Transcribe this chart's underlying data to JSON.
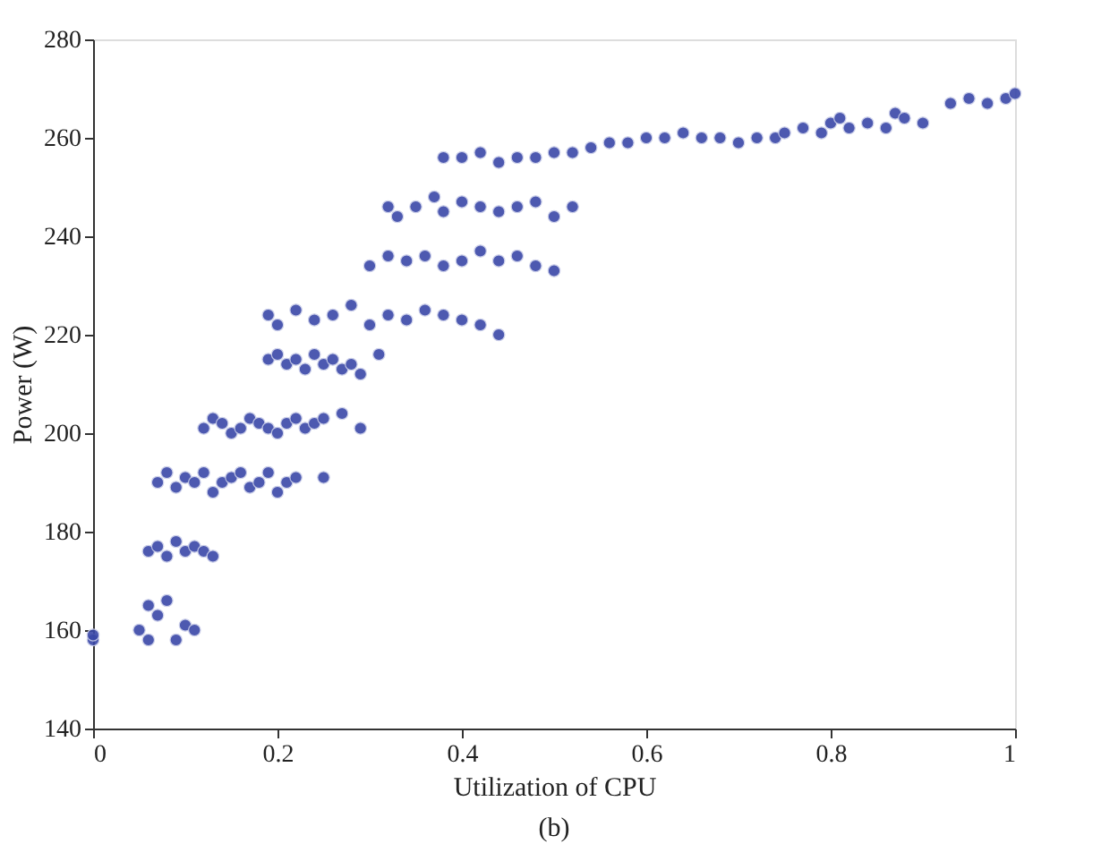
{
  "chart_data": {
    "type": "scatter",
    "xlabel": "Utilization of CPU",
    "ylabel": "Power (W)",
    "annotations": [
      "(b)"
    ],
    "color": "#3a48a8",
    "marker": "circle",
    "xlim": [
      0,
      1
    ],
    "ylim": [
      140,
      280
    ],
    "xticks": [
      0,
      0.2,
      0.4,
      0.6,
      0.8,
      1
    ],
    "yticks": [
      140,
      160,
      180,
      200,
      220,
      240,
      260,
      280
    ],
    "x": [
      0,
      0,
      0.05,
      0.06,
      0.07,
      0.08,
      0.09,
      0.1,
      0.06,
      0.11,
      0.06,
      0.07,
      0.08,
      0.09,
      0.1,
      0.11,
      0.12,
      0.13,
      0.07,
      0.08,
      0.09,
      0.1,
      0.11,
      0.12,
      0.13,
      0.14,
      0.15,
      0.16,
      0.17,
      0.18,
      0.19,
      0.2,
      0.21,
      0.22,
      0.25,
      0.12,
      0.13,
      0.14,
      0.15,
      0.16,
      0.17,
      0.18,
      0.19,
      0.2,
      0.21,
      0.22,
      0.23,
      0.24,
      0.25,
      0.27,
      0.29,
      0.19,
      0.2,
      0.21,
      0.22,
      0.23,
      0.24,
      0.25,
      0.26,
      0.27,
      0.28,
      0.29,
      0.31,
      0.19,
      0.2,
      0.22,
      0.24,
      0.26,
      0.28,
      0.3,
      0.32,
      0.34,
      0.36,
      0.38,
      0.4,
      0.42,
      0.44,
      0.3,
      0.32,
      0.34,
      0.36,
      0.38,
      0.4,
      0.42,
      0.44,
      0.46,
      0.48,
      0.5,
      0.32,
      0.33,
      0.35,
      0.37,
      0.38,
      0.4,
      0.42,
      0.44,
      0.46,
      0.48,
      0.5,
      0.52,
      0.38,
      0.4,
      0.42,
      0.44,
      0.46,
      0.48,
      0.5,
      0.52,
      0.54,
      0.56,
      0.58,
      0.6,
      0.62,
      0.64,
      0.66,
      0.68,
      0.7,
      0.72,
      0.74,
      0.75,
      0.77,
      0.79,
      0.8,
      0.81,
      0.82,
      0.84,
      0.86,
      0.87,
      0.88,
      0.9,
      0.93,
      0.95,
      0.97,
      0.99,
      1
    ],
    "values": [
      158,
      159,
      160,
      158,
      163,
      166,
      158,
      161,
      165,
      160,
      176,
      177,
      175,
      178,
      176,
      177,
      176,
      175,
      190,
      192,
      189,
      191,
      190,
      192,
      188,
      190,
      191,
      192,
      189,
      190,
      192,
      188,
      190,
      191,
      191,
      201,
      203,
      202,
      200,
      201,
      203,
      202,
      201,
      200,
      202,
      203,
      201,
      202,
      203,
      204,
      201,
      215,
      216,
      214,
      215,
      213,
      216,
      214,
      215,
      213,
      214,
      212,
      216,
      224,
      222,
      225,
      223,
      224,
      226,
      222,
      224,
      223,
      225,
      224,
      223,
      222,
      220,
      234,
      236,
      235,
      236,
      234,
      235,
      237,
      235,
      236,
      234,
      233,
      246,
      244,
      246,
      248,
      245,
      247,
      246,
      245,
      246,
      247,
      244,
      246,
      256,
      256,
      257,
      255,
      256,
      256,
      257,
      257,
      258,
      259,
      259,
      260,
      260,
      261,
      260,
      260,
      259,
      260,
      260,
      261,
      262,
      261,
      263,
      264,
      262,
      263,
      262,
      265,
      264,
      263,
      267,
      268,
      267,
      268,
      269
    ]
  }
}
